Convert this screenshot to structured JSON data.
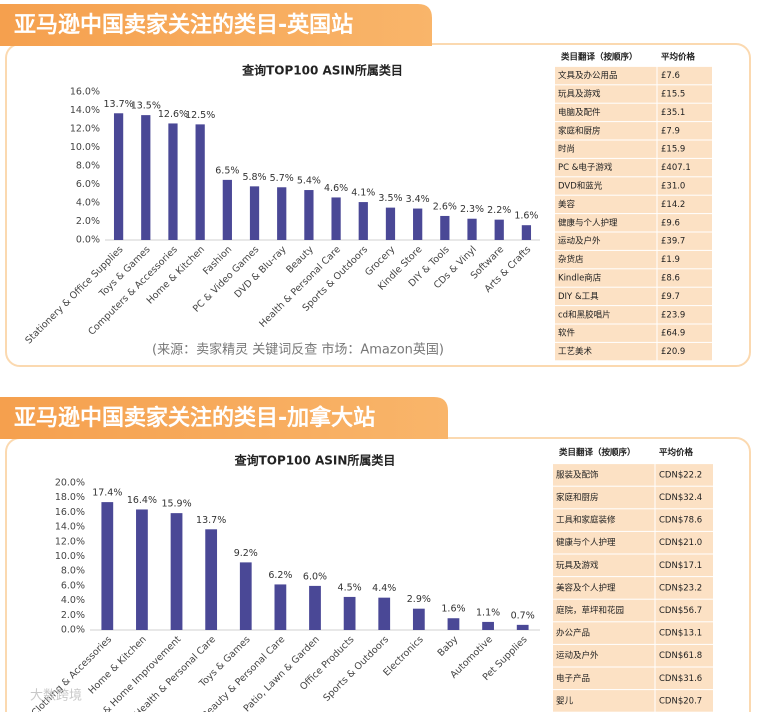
{
  "chart_data": [
    {
      "type": "bar",
      "title": "查询TOP100 ASIN所属类目",
      "color": "#4a4896",
      "categories": [
        "Stationery & Office Supplies",
        "Toys & Games",
        "Computers & Accessories",
        "Home & Kitchen",
        "Fashion",
        "PC & Video Games",
        "DVD & Blu-ray",
        "Beauty",
        "Health & Personal Care",
        "Sports & Outdoors",
        "Grocery",
        "Kindle Store",
        "DIY & Tools",
        "CDs & Vinyl",
        "Software",
        "Arts & Crafts"
      ],
      "values": [
        13.7,
        13.5,
        12.6,
        12.5,
        6.5,
        5.8,
        5.7,
        5.4,
        4.6,
        4.1,
        3.5,
        3.4,
        2.6,
        2.3,
        2.2,
        1.6
      ],
      "value_labels": [
        "13.7%",
        "13.5%",
        "12.6%",
        "12.5%",
        "6.5%",
        "5.8%",
        "5.7%",
        "5.4%",
        "4.6%",
        "4.1%",
        "3.5%",
        "3.4%",
        "2.6%",
        "2.3%",
        "2.2%",
        "1.6%"
      ],
      "ylim": [
        0,
        16
      ],
      "yticks": [
        {
          "value": 0,
          "label": "0.0%"
        },
        {
          "value": 2,
          "label": "2.0%"
        },
        {
          "value": 4,
          "label": "4.0%"
        },
        {
          "value": 6,
          "label": "6.0%"
        },
        {
          "value": 8,
          "label": "8.0%"
        },
        {
          "value": 10,
          "label": "10.0%"
        },
        {
          "value": 12,
          "label": "12.0%"
        },
        {
          "value": 14,
          "label": "14.0%"
        },
        {
          "value": 16,
          "label": "16.0%"
        }
      ],
      "source": "(来源：卖家精灵 关键词反查    市场：Amazon英国)"
    },
    {
      "type": "bar",
      "title": "查询TOP100 ASIN所属类目",
      "color": "#4a4896",
      "categories": [
        "Clothing & Accessories",
        "Home & Kitchen",
        "Tools & Home Improvement",
        "Health & Personal Care",
        "Toys & Games",
        "Beauty & Personal Care",
        "Patio, Lawn & Garden",
        "Office Products",
        "Sports & Outdoors",
        "Electronics",
        "Baby",
        "Automotive",
        "Pet Supplies"
      ],
      "values": [
        17.4,
        16.4,
        15.9,
        13.7,
        9.2,
        6.2,
        6,
        4.5,
        4.4,
        2.9,
        1.6,
        1.1,
        0.7
      ],
      "value_labels": [
        "17.4%",
        "16.4%",
        "15.9%",
        "13.7%",
        "9.2%",
        "6.2%",
        "6.0%",
        "4.5%",
        "4.4%",
        "2.9%",
        "1.6%",
        "1.1%",
        "0.7%"
      ],
      "ylim": [
        0,
        20
      ],
      "yticks": [
        {
          "value": 0,
          "label": "0.0%"
        },
        {
          "value": 2,
          "label": "2.0%"
        },
        {
          "value": 4,
          "label": "4.0%"
        },
        {
          "value": 6,
          "label": "6.0%"
        },
        {
          "value": 8,
          "label": "8.0%"
        },
        {
          "value": 10,
          "label": "10.0%"
        },
        {
          "value": 12,
          "label": "12.0%"
        },
        {
          "value": 14,
          "label": "14.0%"
        },
        {
          "value": 16,
          "label": "16.0%"
        },
        {
          "value": 18,
          "label": "18.0%"
        },
        {
          "value": 20,
          "label": "20.0%"
        }
      ]
    }
  ],
  "panels": [
    {
      "title": "亚马逊中国卖家关注的类目-英国站",
      "table": {
        "header": [
          "类目翻译（按顺序）",
          "平均价格"
        ],
        "rows": [
          [
            "文具及办公用品",
            "£7.6"
          ],
          [
            "玩具及游戏",
            "£15.5"
          ],
          [
            "电脑及配件",
            "£35.1"
          ],
          [
            "家庭和厨房",
            "£7.9"
          ],
          [
            "时尚",
            "£15.9"
          ],
          [
            "PC &电子游戏",
            "£407.1"
          ],
          [
            "DVD和蓝光",
            "£31.0"
          ],
          [
            "美容",
            "£14.2"
          ],
          [
            "健康与个人护理",
            "£9.6"
          ],
          [
            "运动及户外",
            "£39.7"
          ],
          [
            "杂货店",
            "£1.9"
          ],
          [
            "Kindle商店",
            "£8.6"
          ],
          [
            "DIY &工具",
            "£9.7"
          ],
          [
            "cd和黑胶唱片",
            "£23.9"
          ],
          [
            "软件",
            "£64.9"
          ],
          [
            "工艺美术",
            "£20.9"
          ]
        ]
      }
    },
    {
      "title": "亚马逊中国卖家关注的类目-加拿大站",
      "table": {
        "header": [
          "类目翻译（按顺序）",
          "平均价格"
        ],
        "rows": [
          [
            "服装及配饰",
            "CDN$22.2"
          ],
          [
            "家庭和厨房",
            "CDN$32.4"
          ],
          [
            "工具和家庭装修",
            "CDN$78.6"
          ],
          [
            "健康与个人护理",
            "CDN$21.0"
          ],
          [
            "玩具及游戏",
            "CDN$17.1"
          ],
          [
            "美容及个人护理",
            "CDN$23.2"
          ],
          [
            "庭院，草坪和花园",
            "CDN$56.7"
          ],
          [
            "办公产品",
            "CDN$13.1"
          ],
          [
            "运动及户外",
            "CDN$61.8"
          ],
          [
            "电子产品",
            "CDN$31.6"
          ],
          [
            "婴儿",
            "CDN$20.7"
          ]
        ]
      }
    }
  ],
  "watermark": "大数跨境"
}
